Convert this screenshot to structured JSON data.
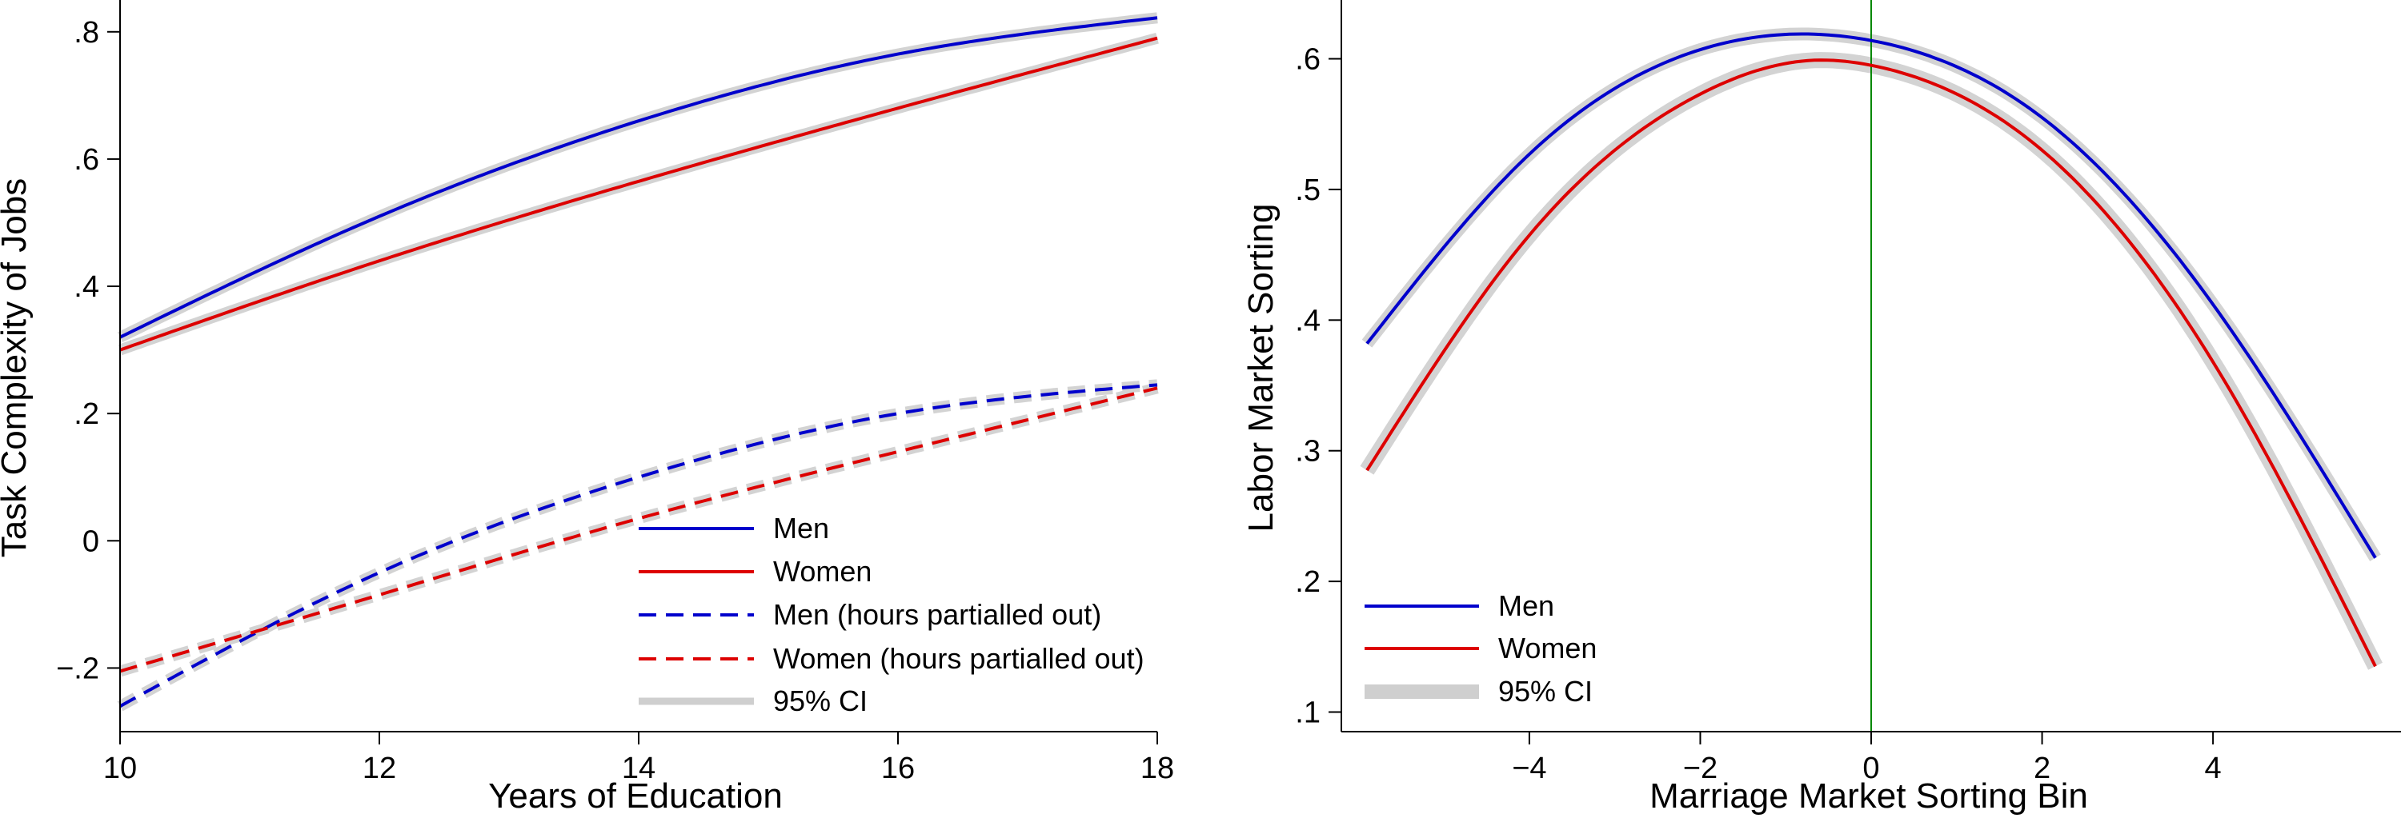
{
  "chart_data": [
    {
      "type": "line",
      "xlabel": "Years of Education",
      "ylabel": "Task Complexity of Jobs",
      "xlim": [
        10,
        18
      ],
      "ylim": [
        -0.3,
        0.85
      ],
      "xticks": [
        10,
        12,
        14,
        16,
        18
      ],
      "xtick_labels": [
        "10",
        "12",
        "14",
        "16",
        "18"
      ],
      "yticks": [
        -0.2,
        0,
        0.2,
        0.4,
        0.6,
        0.8
      ],
      "ytick_labels": [
        "−.2",
        "0",
        ".2",
        ".4",
        ".6",
        ".8"
      ],
      "grid": false,
      "legend_position": "bottom-right",
      "ci_label": "95% CI",
      "series": [
        {
          "name": "Men",
          "color": "#0000cc",
          "dash": false,
          "x": [
            10,
            12,
            14,
            16,
            18
          ],
          "y": [
            0.32,
            0.51,
            0.66,
            0.765,
            0.822
          ]
        },
        {
          "name": "Women",
          "color": "#dd0000",
          "dash": false,
          "x": [
            10,
            12,
            14,
            16,
            18
          ],
          "y": [
            0.3,
            0.44,
            0.565,
            0.68,
            0.79
          ]
        },
        {
          "name": "Men (hours partialled out)",
          "color": "#0000cc",
          "dash": true,
          "x": [
            10,
            12,
            14,
            16,
            18
          ],
          "y": [
            -0.26,
            -0.05,
            0.1,
            0.2,
            0.245
          ]
        },
        {
          "name": "Women (hours partialled out)",
          "color": "#dd0000",
          "dash": true,
          "x": [
            10,
            12,
            14,
            16,
            18
          ],
          "y": [
            -0.205,
            -0.085,
            0.035,
            0.14,
            0.24
          ]
        }
      ]
    },
    {
      "type": "line",
      "xlabel": "Marriage Market Sorting Bin",
      "ylabel": "Labor Market Sorting",
      "xlim": [
        -6.2,
        6.2
      ],
      "ylim": [
        0.085,
        0.645
      ],
      "xticks": [
        -4,
        -2,
        0,
        2,
        4
      ],
      "xtick_labels": [
        "−4",
        "−2",
        "0",
        "2",
        "4"
      ],
      "yticks": [
        0.1,
        0.2,
        0.3,
        0.4,
        0.5,
        0.6
      ],
      "ytick_labels": [
        ".1",
        ".2",
        ".3",
        ".4",
        ".5",
        ".6"
      ],
      "grid": false,
      "vline_x": 0,
      "vline_color": "#008800",
      "legend_position": "bottom-left",
      "ci_label": "95% CI",
      "series": [
        {
          "name": "Men",
          "color": "#0000cc",
          "x": [
            -5.9,
            -4,
            -2,
            -0.8,
            0,
            2,
            4,
            5.9
          ],
          "y": [
            0.382,
            0.527,
            0.607,
            0.619,
            0.614,
            0.555,
            0.412,
            0.218
          ]
        },
        {
          "name": "Women",
          "color": "#dd0000",
          "x": [
            -5.9,
            -4,
            -2,
            -0.6,
            0,
            2,
            4,
            5.9
          ],
          "y": [
            0.285,
            0.465,
            0.573,
            0.599,
            0.595,
            0.53,
            0.368,
            0.135
          ]
        }
      ]
    }
  ]
}
